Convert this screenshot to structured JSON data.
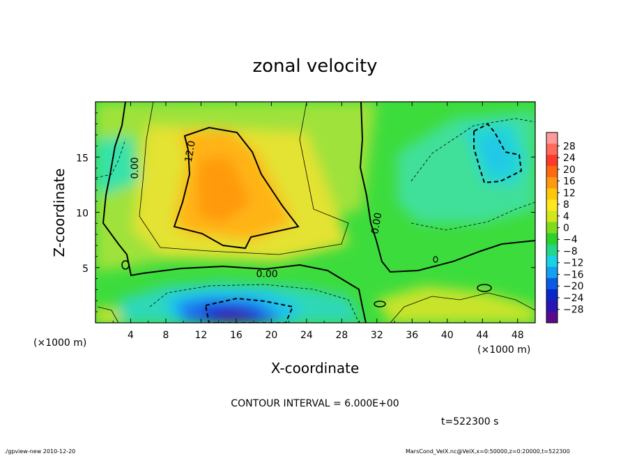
{
  "chart_data": {
    "type": "heatmap",
    "title": "zonal velocity",
    "xlabel": "X-coordinate",
    "ylabel": "Z-coordinate",
    "x_unit": "(×1000 m)",
    "y_unit": "(×1000 m)",
    "xlim": [
      0,
      50
    ],
    "ylim": [
      0,
      20
    ],
    "x_ticks": [
      4,
      8,
      12,
      16,
      20,
      24,
      28,
      32,
      36,
      40,
      44,
      48
    ],
    "y_ticks": [
      5,
      10,
      15
    ],
    "colorbar_levels": [
      28,
      24,
      20,
      16,
      12,
      8,
      4,
      0,
      -4,
      -8,
      -12,
      -16,
      -20,
      -24,
      -28
    ],
    "contour_interval_text": "CONTOUR INTERVAL = 6.000E+00",
    "contour_labels": [
      {
        "text": "12.0",
        "x": 10.8,
        "z": 15.5,
        "angle": -80
      },
      {
        "text": "0.00",
        "x": 4.5,
        "z": 14.0,
        "angle": -90
      },
      {
        "text": "0.00",
        "x": 19.5,
        "z": 4.4,
        "angle": 0
      },
      {
        "text": "0.00",
        "x": 32.0,
        "z": 9.0,
        "angle": -80
      }
    ],
    "grid": false
  },
  "annotations": {
    "time": "t=522300 s",
    "footer_left": "./gpview-new  2010-12-20",
    "footer_right": "MarsCond_VelX.nc@VelX,x=0:50000,z=0:20000,t=522300"
  },
  "colors": {
    "neg_strong": "#5a0a8c",
    "neg_mid": "#0a37e0",
    "neg_light": "#19d2e6",
    "zero": "#2bd22b",
    "pos_light": "#b4e61e",
    "pos_mid": "#ffc80a",
    "pos_strong": "#ff9a9a"
  }
}
